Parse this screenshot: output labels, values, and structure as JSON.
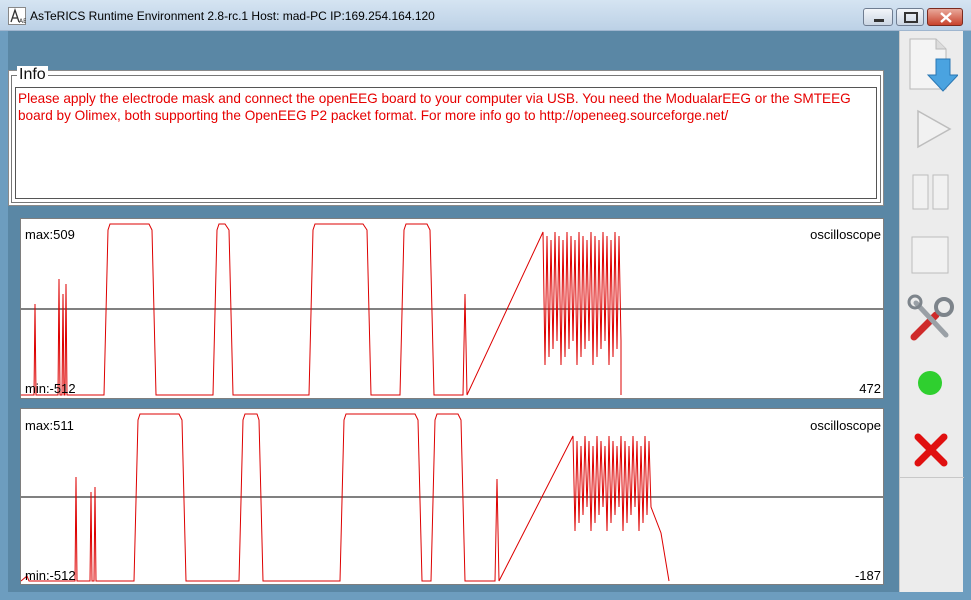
{
  "window": {
    "title": "AsTeRICS Runtime Environment 2.8-rc.1   Host: mad-PC  IP:169.254.164.120",
    "app_icon": "asterics-app-icon",
    "controls": [
      "minimize-icon",
      "maximize-icon",
      "close-icon"
    ]
  },
  "info": {
    "legend": "Info",
    "text": "Please apply the electrode mask and connect the openEEG board to your computer via USB. You need the ModualarEEG or the SMTEEG board by Olimex, both supporting the OpenEEG P2 packet format. For more info go to http://openeeg.sourceforge.net/",
    "text_color": "#e60000"
  },
  "oscilloscopes": [
    {
      "name": "oscilloscope",
      "max_label": "max:509",
      "min_label": "min:-512",
      "current_value": "472",
      "trace_color": "#dd0000"
    },
    {
      "name": "oscilloscope",
      "max_label": "max:511",
      "min_label": "min:-512",
      "current_value": "-187",
      "trace_color": "#dd0000"
    }
  ],
  "toolbar": {
    "buttons": [
      {
        "id": "deploy",
        "icon": "deploy-model-icon"
      },
      {
        "id": "start",
        "icon": "play-icon"
      },
      {
        "id": "pause",
        "icon": "pause-icon"
      },
      {
        "id": "stop",
        "icon": "stop-icon"
      },
      {
        "id": "options",
        "icon": "tools-icon"
      },
      {
        "id": "status",
        "icon": "status-green-icon",
        "color": "#2fcf2f"
      },
      {
        "id": "exit",
        "icon": "exit-x-icon",
        "color": "#e01010"
      }
    ]
  }
}
